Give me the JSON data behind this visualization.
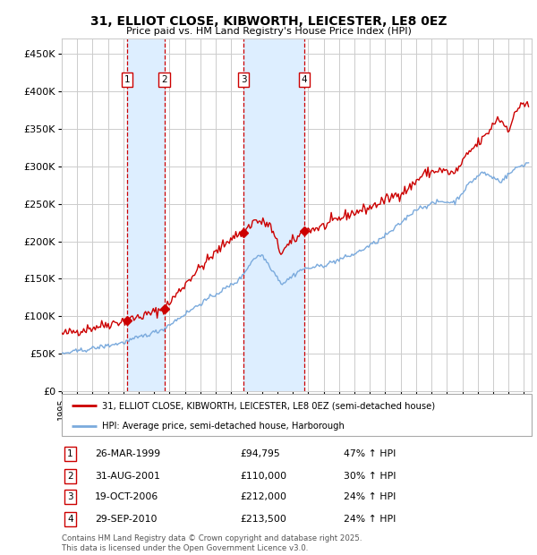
{
  "title": "31, ELLIOT CLOSE, KIBWORTH, LEICESTER, LE8 0EZ",
  "subtitle": "Price paid vs. HM Land Registry's House Price Index (HPI)",
  "xlim_start": 1995.0,
  "xlim_end": 2025.5,
  "ylim_min": 0,
  "ylim_max": 470000,
  "yticks": [
    0,
    50000,
    100000,
    150000,
    200000,
    250000,
    300000,
    350000,
    400000,
    450000
  ],
  "ytick_labels": [
    "£0",
    "£50K",
    "£100K",
    "£150K",
    "£200K",
    "£250K",
    "£300K",
    "£350K",
    "£400K",
    "£450K"
  ],
  "transactions": [
    {
      "num": 1,
      "date_num": 1999.23,
      "price": 94795,
      "label": "1",
      "date_str": "26-MAR-1999",
      "price_str": "£94,795",
      "hpi_str": "47% ↑ HPI"
    },
    {
      "num": 2,
      "date_num": 2001.66,
      "price": 110000,
      "label": "2",
      "date_str": "31-AUG-2001",
      "price_str": "£110,000",
      "hpi_str": "30% ↑ HPI"
    },
    {
      "num": 3,
      "date_num": 2006.8,
      "price": 212000,
      "label": "3",
      "date_str": "19-OCT-2006",
      "price_str": "£212,000",
      "hpi_str": "24% ↑ HPI"
    },
    {
      "num": 4,
      "date_num": 2010.75,
      "price": 213500,
      "label": "4",
      "date_str": "29-SEP-2010",
      "price_str": "£213,500",
      "hpi_str": "24% ↑ HPI"
    }
  ],
  "price_anchors_x": [
    1995.0,
    1997.0,
    1998.5,
    1999.23,
    2000.5,
    2001.66,
    2003.5,
    2006.0,
    2006.8,
    2007.5,
    2008.5,
    2009.2,
    2010.75,
    2012.0,
    2013.5,
    2015.0,
    2016.0,
    2017.5,
    2018.5,
    2019.5,
    2020.5,
    2021.5,
    2022.5,
    2023.3,
    2024.0,
    2024.8,
    2025.3
  ],
  "price_anchors_y": [
    76000,
    85000,
    92000,
    94795,
    102000,
    110000,
    155000,
    205000,
    212000,
    228000,
    222000,
    185000,
    213500,
    220000,
    235000,
    245000,
    255000,
    270000,
    290000,
    295000,
    290000,
    320000,
    340000,
    365000,
    350000,
    385000,
    380000
  ],
  "hpi_anchors_x": [
    1995.0,
    1997.0,
    1999.0,
    2001.5,
    2004.0,
    2006.5,
    2007.5,
    2008.0,
    2009.3,
    2010.5,
    2012.0,
    2014.0,
    2015.5,
    2016.5,
    2018.0,
    2019.5,
    2020.5,
    2021.5,
    2022.3,
    2023.5,
    2024.5,
    2025.3
  ],
  "hpi_anchors_y": [
    50000,
    57000,
    65000,
    82000,
    117000,
    148000,
    178000,
    182000,
    143000,
    162000,
    168000,
    183000,
    200000,
    215000,
    243000,
    253000,
    252000,
    278000,
    292000,
    280000,
    298000,
    305000
  ],
  "price_line_color": "#cc0000",
  "hpi_line_color": "#7aaadd",
  "vspan_color": "#ddeeff",
  "vline_color": "#cc0000",
  "grid_color": "#cccccc",
  "background_color": "#ffffff",
  "legend_border_color": "#aaaaaa",
  "footnote": "Contains HM Land Registry data © Crown copyright and database right 2025.\nThis data is licensed under the Open Government Licence v3.0.",
  "xticks": [
    1995,
    1996,
    1997,
    1998,
    1999,
    2000,
    2001,
    2002,
    2003,
    2004,
    2005,
    2006,
    2007,
    2008,
    2009,
    2010,
    2011,
    2012,
    2013,
    2014,
    2015,
    2016,
    2017,
    2018,
    2019,
    2020,
    2021,
    2022,
    2023,
    2024,
    2025
  ]
}
